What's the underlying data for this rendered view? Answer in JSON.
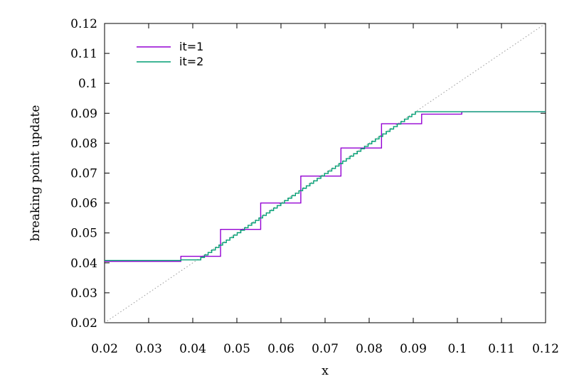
{
  "chart_data": {
    "type": "line",
    "xlabel": "x",
    "ylabel": "breaking point update",
    "xlim": [
      0.02,
      0.12
    ],
    "ylim": [
      0.02,
      0.12
    ],
    "xticks": [
      "0.02",
      "0.03",
      "0.04",
      "0.05",
      "0.06",
      "0.07",
      "0.08",
      "0.09",
      "0.1",
      "0.11",
      "0.12"
    ],
    "yticks": [
      "0.02",
      "0.03",
      "0.04",
      "0.05",
      "0.06",
      "0.07",
      "0.08",
      "0.09",
      "0.1",
      "0.11",
      "0.12"
    ],
    "grid": false,
    "legend_position": "top-left",
    "reference_line": {
      "style": "dotted",
      "color": "#999999",
      "points": [
        [
          0.02,
          0.02
        ],
        [
          0.12,
          0.12
        ]
      ]
    },
    "series": [
      {
        "name": "it=1",
        "color": "#9400d3",
        "step": true,
        "x": [
          0.02,
          0.0373,
          0.0463,
          0.0554,
          0.0645,
          0.0736,
          0.0828,
          0.0919,
          0.101,
          0.12
        ],
        "y": [
          0.0405,
          0.0422,
          0.0512,
          0.06,
          0.069,
          0.0784,
          0.0865,
          0.0897,
          0.0905,
          0.0905
        ]
      },
      {
        "name": "it=2",
        "color": "#009e73",
        "step": true,
        "x": [
          0.02,
          0.0373,
          0.041,
          0.0905,
          0.12
        ],
        "y": [
          0.0408,
          0.041,
          0.041,
          0.0905,
          0.0905
        ]
      }
    ]
  }
}
